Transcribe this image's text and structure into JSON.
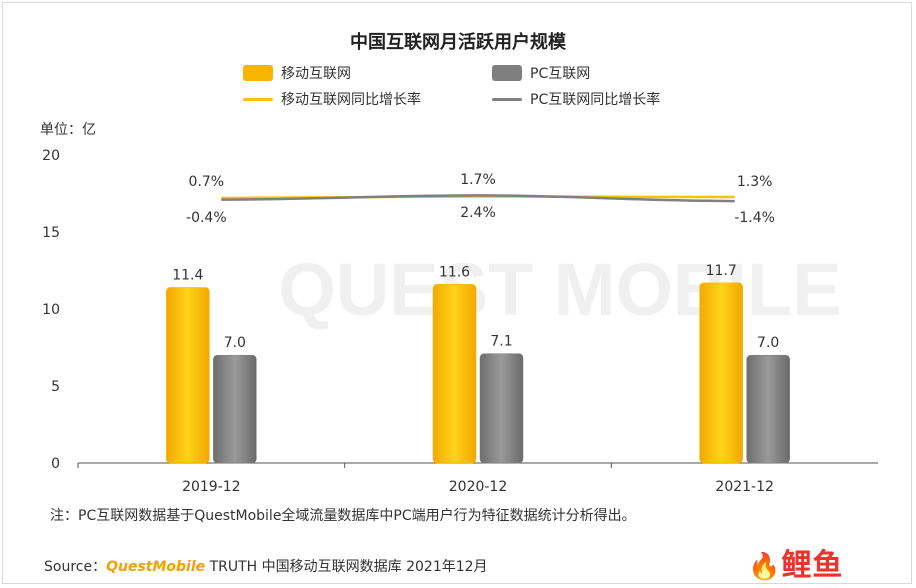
{
  "title": "中国互联网月活跃用户规模",
  "unit_label": "单位：亿",
  "legend": {
    "mobile_bar": "移动互联网",
    "pc_bar": "PC互联网",
    "mobile_line": "移动互联网同比增长率",
    "pc_line": "PC互联网同比增长率"
  },
  "watermark": "QUEST MOBILE",
  "note": "注：PC互联网数据基于QuestMobile全域流量数据库中PC端用户行为特征数据统计分析得出。",
  "source": {
    "prefix": "Source：",
    "brand": "QuestMobile",
    "rest": " TRUTH 中国移动互联网数据库 2021年12月"
  },
  "logo_text": "鲤鱼",
  "colors": {
    "mobile": "#f7b500",
    "pc": "#7f7f7f",
    "mobile_line": "#f5c400",
    "pc_line": "#808080",
    "axis": "#333333"
  },
  "chart_data": {
    "type": "bar",
    "categories": [
      "2019-12",
      "2020-12",
      "2021-12"
    ],
    "ylim": [
      0,
      20
    ],
    "yticks": [
      0,
      5,
      10,
      15,
      20
    ],
    "series": [
      {
        "name": "移动互联网",
        "values": [
          11.4,
          11.6,
          11.7
        ],
        "labels": [
          "11.4",
          "11.6",
          "11.7"
        ]
      },
      {
        "name": "PC互联网",
        "values": [
          7.0,
          7.1,
          7.0
        ],
        "labels": [
          "7.0",
          "7.1",
          "7.0"
        ]
      }
    ],
    "growth_lines": [
      {
        "name": "移动互联网同比增长率",
        "values": [
          0.7,
          1.7,
          1.3
        ],
        "labels": [
          "0.7%",
          "1.7%",
          "1.3%"
        ]
      },
      {
        "name": "PC互联网同比增长率",
        "values": [
          -0.4,
          2.4,
          -1.4
        ],
        "labels": [
          "-0.4%",
          "2.4%",
          "-1.4%"
        ]
      }
    ]
  }
}
